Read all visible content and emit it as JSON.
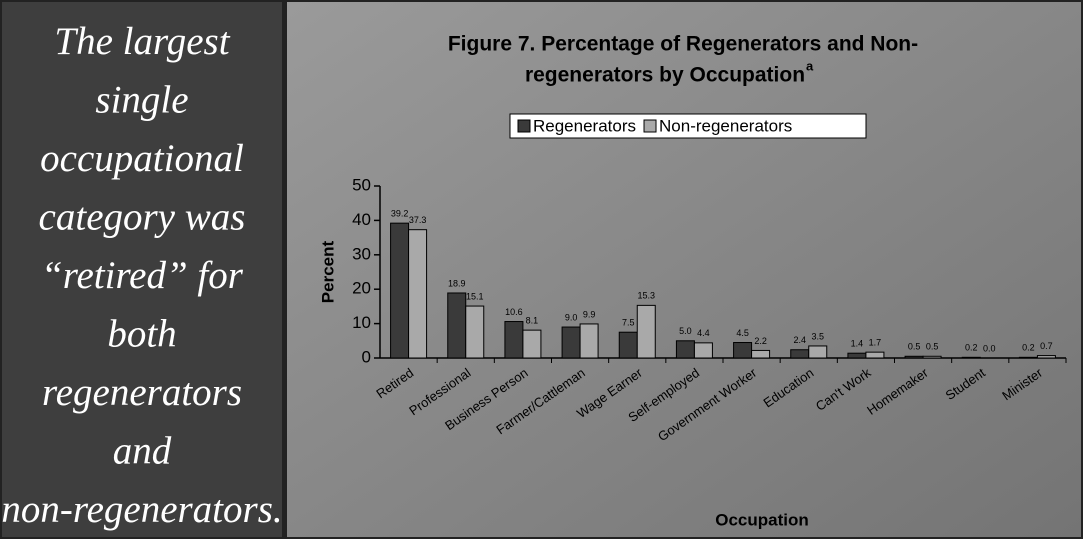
{
  "sidebar": {
    "lines": [
      "The largest",
      "single",
      "occupational",
      "category was",
      "“retired” for",
      "both",
      "regenerators",
      "and",
      "non-regenerators."
    ]
  },
  "chart_data": {
    "type": "bar",
    "title": [
      "Figure 7.  Percentage of Regenerators and Non-",
      "regenerators by Occupation"
    ],
    "title_superscript": "a",
    "x_label": "Occupation",
    "y_label": "Percent",
    "categories": [
      "Retired",
      "Professional",
      "Business Person",
      "Farmer/Cattleman",
      "Wage Earner",
      "Self-employed",
      "Government Worker",
      "Education",
      "Can't Work",
      "Homemaker",
      "Student",
      "Minister"
    ],
    "series": [
      {
        "name": "Regenerators",
        "color": "#3a3a3a",
        "values": [
          39.2,
          18.9,
          10.6,
          9.0,
          7.5,
          5.0,
          4.5,
          2.4,
          1.4,
          0.5,
          0.2,
          0.2
        ],
        "value_labels": [
          "39.2",
          "18.9",
          "10.6",
          "9.0",
          "7.5",
          "5.0",
          "4.5",
          "2.4",
          "1.4",
          "0.5",
          "0.2",
          "0.2"
        ]
      },
      {
        "name": "Non-regenerators",
        "color": "#a9a9a9",
        "values": [
          37.3,
          15.1,
          8.1,
          9.9,
          15.3,
          4.4,
          2.2,
          3.5,
          1.7,
          0.5,
          0.0,
          0.7
        ],
        "value_labels": [
          "37.3",
          "15.1",
          "8.1",
          "9.9",
          "15.3",
          "4.4",
          "2.2",
          "3.5",
          "1.7",
          "0.5",
          "0.0",
          "0.7"
        ]
      }
    ],
    "ylim": [
      0,
      50
    ],
    "yticks": [
      0,
      10,
      20,
      30,
      40,
      50
    ],
    "grid": false,
    "legend": "top"
  }
}
